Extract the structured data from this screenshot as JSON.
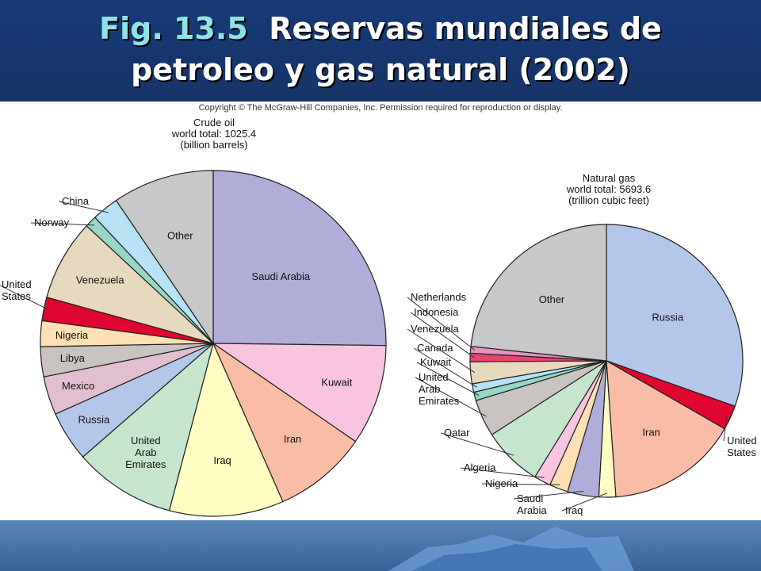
{
  "title": {
    "fig": "Fig. 13.5",
    "line1": "Reservas mundiales de",
    "line2": "petroleo y gas natural (2002)"
  },
  "copyright": "Copyright © The McGraw-Hill Companies, Inc. Permission required for reproduction or display.",
  "chart_data": [
    {
      "type": "pie",
      "title": [
        "Crude oil",
        "world total: 1025.4",
        "(billion barrels)"
      ],
      "slices": [
        {
          "label": "Saudi Arabia",
          "value": 25.2,
          "color": "#b0add8"
        },
        {
          "label": "Kuwait",
          "value": 9.4,
          "color": "#f8c4e0"
        },
        {
          "label": "Iran",
          "value": 8.8,
          "color": "#f9bda6"
        },
        {
          "label": "Iraq",
          "value": 10.7,
          "color": "#fffdc2"
        },
        {
          "label": "United Arab Emirates",
          "value": 9.5,
          "color": "#c5e6cc"
        },
        {
          "label": "Russia",
          "value": 4.7,
          "color": "#b4c6e9"
        },
        {
          "label": "Mexico",
          "value": 3.6,
          "color": "#e2bfd0"
        },
        {
          "label": "Libya",
          "value": 2.8,
          "color": "#c9c3c2"
        },
        {
          "label": "Nigeria",
          "value": 2.4,
          "color": "#fde0b3"
        },
        {
          "label": "United States",
          "value": 2.2,
          "color": "#e0062f"
        },
        {
          "label": "Venezuela",
          "value": 7.6,
          "color": "#e6d9bd"
        },
        {
          "label": "Norway",
          "value": 1.1,
          "color": "#98d6c5"
        },
        {
          "label": "China",
          "value": 2.5,
          "color": "#b6e2f5"
        },
        {
          "label": "Other",
          "value": 9.5,
          "color": "#c7c8ca"
        }
      ]
    },
    {
      "type": "pie",
      "title": [
        "Natural gas",
        "world total: 5693.6",
        "(trillion cubic feet)"
      ],
      "slices": [
        {
          "label": "Russia",
          "value": 30.4,
          "color": "#b4c6e9"
        },
        {
          "label": "United States",
          "value": 2.9,
          "color": "#e0062f"
        },
        {
          "label": "Iran",
          "value": 15.6,
          "color": "#f9bda6"
        },
        {
          "label": "Iraq",
          "value": 2.0,
          "color": "#fffdc2"
        },
        {
          "label": "Saudi Arabia",
          "value": 3.7,
          "color": "#b0add8"
        },
        {
          "label": "Nigeria",
          "value": 2.2,
          "color": "#fde0b3"
        },
        {
          "label": "Algeria",
          "value": 2.0,
          "color": "#f8c4e0"
        },
        {
          "label": "Qatar",
          "value": 7.1,
          "color": "#c5e6cc"
        },
        {
          "label": "United Arab Emirates",
          "value": 4.4,
          "color": "#c9c3c2"
        },
        {
          "label": "Kuwait",
          "value": 1.0,
          "color": "#98d6c5"
        },
        {
          "label": "Canada",
          "value": 1.0,
          "color": "#b6e2f5"
        },
        {
          "label": "Venezuela",
          "value": 2.6,
          "color": "#e6d9bd"
        },
        {
          "label": "Indonesia",
          "value": 1.0,
          "color": "#e8456b"
        },
        {
          "label": "Netherlands",
          "value": 0.8,
          "color": "#e493c2"
        },
        {
          "label": "Other",
          "value": 23.3,
          "color": "#c7c8ca"
        }
      ]
    }
  ]
}
